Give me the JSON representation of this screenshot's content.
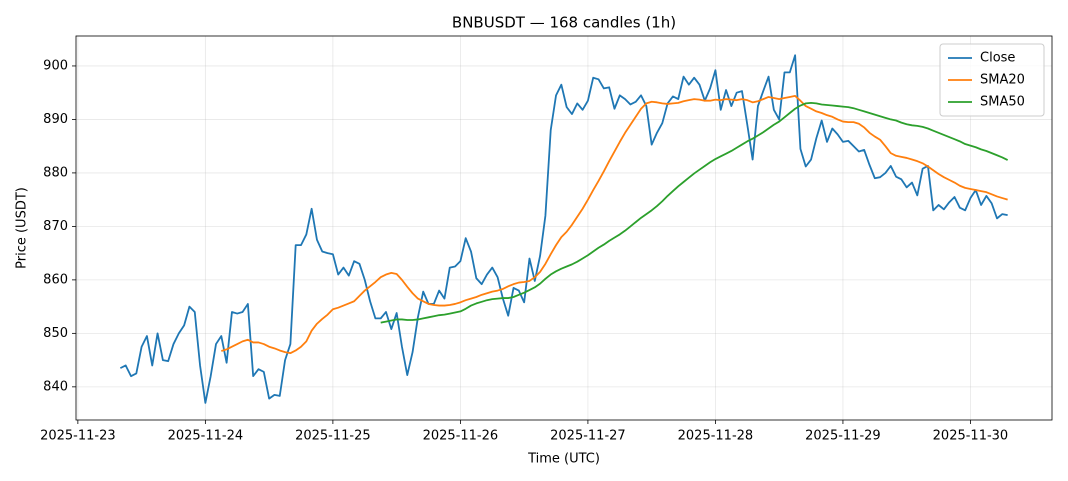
{
  "chart_data": {
    "type": "line",
    "title": "BNBUSDT — 168 candles (1h)",
    "x_label": "Time (UTC)",
    "y_label": "Price (USDT)",
    "x": [
      "2025-11-23 08:00",
      "2025-11-23 09:00",
      "2025-11-23 10:00",
      "2025-11-23 11:00",
      "2025-11-23 12:00",
      "2025-11-23 13:00",
      "2025-11-23 14:00",
      "2025-11-23 15:00",
      "2025-11-23 16:00",
      "2025-11-23 17:00",
      "2025-11-23 18:00",
      "2025-11-23 19:00",
      "2025-11-23 20:00",
      "2025-11-23 21:00",
      "2025-11-23 22:00",
      "2025-11-23 23:00",
      "2025-11-24 00:00",
      "2025-11-24 01:00",
      "2025-11-24 02:00",
      "2025-11-24 03:00",
      "2025-11-24 04:00",
      "2025-11-24 05:00",
      "2025-11-24 06:00",
      "2025-11-24 07:00",
      "2025-11-24 08:00",
      "2025-11-24 09:00",
      "2025-11-24 10:00",
      "2025-11-24 11:00",
      "2025-11-24 12:00",
      "2025-11-24 13:00",
      "2025-11-24 14:00",
      "2025-11-24 15:00",
      "2025-11-24 16:00",
      "2025-11-24 17:00",
      "2025-11-24 18:00",
      "2025-11-24 19:00",
      "2025-11-24 20:00",
      "2025-11-24 21:00",
      "2025-11-24 22:00",
      "2025-11-24 23:00",
      "2025-11-25 00:00",
      "2025-11-25 01:00",
      "2025-11-25 02:00",
      "2025-11-25 03:00",
      "2025-11-25 04:00",
      "2025-11-25 05:00",
      "2025-11-25 06:00",
      "2025-11-25 07:00",
      "2025-11-25 08:00",
      "2025-11-25 09:00",
      "2025-11-25 10:00",
      "2025-11-25 11:00",
      "2025-11-25 12:00",
      "2025-11-25 13:00",
      "2025-11-25 14:00",
      "2025-11-25 15:00",
      "2025-11-25 16:00",
      "2025-11-25 17:00",
      "2025-11-25 18:00",
      "2025-11-25 19:00",
      "2025-11-25 20:00",
      "2025-11-25 21:00",
      "2025-11-25 22:00",
      "2025-11-25 23:00",
      "2025-11-26 00:00",
      "2025-11-26 01:00",
      "2025-11-26 02:00",
      "2025-11-26 03:00",
      "2025-11-26 04:00",
      "2025-11-26 05:00",
      "2025-11-26 06:00",
      "2025-11-26 07:00",
      "2025-11-26 08:00",
      "2025-11-26 09:00",
      "2025-11-26 10:00",
      "2025-11-26 11:00",
      "2025-11-26 12:00",
      "2025-11-26 13:00",
      "2025-11-26 14:00",
      "2025-11-26 15:00",
      "2025-11-26 16:00",
      "2025-11-26 17:00",
      "2025-11-26 18:00",
      "2025-11-26 19:00",
      "2025-11-26 20:00",
      "2025-11-26 21:00",
      "2025-11-26 22:00",
      "2025-11-26 23:00",
      "2025-11-27 00:00",
      "2025-11-27 01:00",
      "2025-11-27 02:00",
      "2025-11-27 03:00",
      "2025-11-27 04:00",
      "2025-11-27 05:00",
      "2025-11-27 06:00",
      "2025-11-27 07:00",
      "2025-11-27 08:00",
      "2025-11-27 09:00",
      "2025-11-27 10:00",
      "2025-11-27 11:00",
      "2025-11-27 12:00",
      "2025-11-27 13:00",
      "2025-11-27 14:00",
      "2025-11-27 15:00",
      "2025-11-27 16:00",
      "2025-11-27 17:00",
      "2025-11-27 18:00",
      "2025-11-27 19:00",
      "2025-11-27 20:00",
      "2025-11-27 21:00",
      "2025-11-27 22:00",
      "2025-11-27 23:00",
      "2025-11-28 00:00",
      "2025-11-28 01:00",
      "2025-11-28 02:00",
      "2025-11-28 03:00",
      "2025-11-28 04:00",
      "2025-11-28 05:00",
      "2025-11-28 06:00",
      "2025-11-28 07:00",
      "2025-11-28 08:00",
      "2025-11-28 09:00",
      "2025-11-28 10:00",
      "2025-11-28 11:00",
      "2025-11-28 12:00",
      "2025-11-28 13:00",
      "2025-11-28 14:00",
      "2025-11-28 15:00",
      "2025-11-28 16:00",
      "2025-11-28 17:00",
      "2025-11-28 18:00",
      "2025-11-28 19:00",
      "2025-11-28 20:00",
      "2025-11-28 21:00",
      "2025-11-28 22:00",
      "2025-11-28 23:00",
      "2025-11-29 00:00",
      "2025-11-29 01:00",
      "2025-11-29 02:00",
      "2025-11-29 03:00",
      "2025-11-29 04:00",
      "2025-11-29 05:00",
      "2025-11-29 06:00",
      "2025-11-29 07:00",
      "2025-11-29 08:00",
      "2025-11-29 09:00",
      "2025-11-29 10:00",
      "2025-11-29 11:00",
      "2025-11-29 12:00",
      "2025-11-29 13:00",
      "2025-11-29 14:00",
      "2025-11-29 15:00",
      "2025-11-29 16:00",
      "2025-11-29 17:00",
      "2025-11-29 18:00",
      "2025-11-29 19:00",
      "2025-11-29 20:00",
      "2025-11-29 21:00",
      "2025-11-29 22:00",
      "2025-11-29 23:00",
      "2025-11-30 00:00",
      "2025-11-30 01:00",
      "2025-11-30 02:00",
      "2025-11-30 03:00",
      "2025-11-30 04:00",
      "2025-11-30 05:00",
      "2025-11-30 06:00",
      "2025-11-30 07:00"
    ],
    "series": [
      {
        "name": "Close",
        "color": "#1f77b4",
        "values": [
          843.5,
          844,
          842,
          842.5,
          847.5,
          849.5,
          844,
          850,
          845,
          844.8,
          848,
          850,
          851.5,
          855,
          854,
          844,
          837,
          842,
          848,
          849.5,
          844.5,
          854,
          853.7,
          854,
          855.5,
          842,
          843.3,
          842.8,
          837.8,
          838.5,
          838.3,
          845,
          848,
          866.5,
          866.5,
          868.5,
          873.3,
          867.5,
          865.3,
          865,
          864.8,
          861,
          862.3,
          860.8,
          863.5,
          863,
          860,
          856,
          852.8,
          852.8,
          854,
          850.8,
          853.8,
          847.5,
          842.2,
          846.5,
          853,
          857.8,
          855.5,
          855.5,
          858,
          856.5,
          862.3,
          862.5,
          863.5,
          867.8,
          865.3,
          860.3,
          859.2,
          861,
          862.3,
          860.5,
          856.5,
          853.3,
          858.5,
          858,
          855.8,
          864,
          859.8,
          864.5,
          872,
          888,
          894.5,
          896.5,
          892.3,
          891,
          893,
          891.8,
          893.5,
          897.8,
          897.5,
          895.8,
          896,
          892,
          894.5,
          893.8,
          892.8,
          893.3,
          894.5,
          892.5,
          885.3,
          887.5,
          889.3,
          893,
          894.3,
          893.8,
          898,
          896.5,
          897.8,
          896.5,
          893.5,
          895.8,
          899.2,
          891.8,
          895.5,
          892.5,
          895,
          895.3,
          889,
          882.5,
          892.5,
          895.3,
          898,
          891.8,
          890,
          898.8,
          898.8,
          902,
          884.5,
          881.2,
          882.5,
          886.5,
          889.8,
          885.8,
          888.3,
          887.2,
          885.8,
          886,
          885,
          884,
          884.3,
          881.5,
          879,
          879.2,
          880,
          881.3,
          879.3,
          878.8,
          877.3,
          878.2,
          875.8,
          880.8,
          881.3,
          873,
          874,
          873.2,
          874.5,
          875.5,
          873.5,
          873,
          875.3,
          876.8,
          874,
          875.7,
          874.3,
          871.5,
          872.3,
          872.1
        ]
      },
      {
        "name": "SMA20",
        "color": "#ff7f0e",
        "values": [
          null,
          null,
          null,
          null,
          null,
          null,
          null,
          null,
          null,
          null,
          null,
          null,
          null,
          null,
          null,
          null,
          null,
          null,
          null,
          846.7,
          847,
          847.5,
          848,
          848.5,
          848.8,
          848.3,
          848.3,
          848,
          847.5,
          847.2,
          846.8,
          846.5,
          846.3,
          846.8,
          847.5,
          848.5,
          850.5,
          851.8,
          852.7,
          853.5,
          854.5,
          854.8,
          855.2,
          855.6,
          856,
          857,
          858,
          858.8,
          859.6,
          860.5,
          861,
          861.3,
          861.1,
          860,
          858.7,
          857.5,
          856.5,
          856,
          855.5,
          855.3,
          855.2,
          855.2,
          855.3,
          855.5,
          855.8,
          856.2,
          856.5,
          856.8,
          857.2,
          857.5,
          857.8,
          858,
          858.3,
          858.8,
          859.2,
          859.5,
          859.6,
          859.8,
          860.5,
          861.5,
          863,
          864.8,
          866.5,
          868,
          869,
          870.3,
          871.8,
          873.3,
          875,
          876.8,
          878.5,
          880.3,
          882.2,
          884,
          885.8,
          887.5,
          889,
          890.5,
          892,
          893,
          893.3,
          893.2,
          893,
          892.9,
          893,
          893.1,
          893.4,
          893.6,
          893.8,
          893.7,
          893.5,
          893.5,
          893.7,
          893.6,
          893.8,
          893.7,
          893.6,
          893.8,
          893.6,
          893.2,
          893.4,
          893.8,
          894.2,
          894,
          893.8,
          894,
          894.2,
          894.4,
          893.5,
          892.5,
          892,
          891.5,
          891.2,
          890.8,
          890.5,
          890,
          889.6,
          889.5,
          889.5,
          889.2,
          888.5,
          887.5,
          886.8,
          886.2,
          885,
          883.7,
          883.2,
          883,
          882.8,
          882.5,
          882.2,
          881.8,
          881.2,
          880.5,
          879.8,
          879.2,
          878.7,
          878.2,
          877.6,
          877.2,
          877,
          876.8,
          876.6,
          876.4,
          876,
          875.6,
          875.3,
          875
        ]
      },
      {
        "name": "SMA50",
        "color": "#2ca02c",
        "values": [
          null,
          null,
          null,
          null,
          null,
          null,
          null,
          null,
          null,
          null,
          null,
          null,
          null,
          null,
          null,
          null,
          null,
          null,
          null,
          null,
          null,
          null,
          null,
          null,
          null,
          null,
          null,
          null,
          null,
          null,
          null,
          null,
          null,
          null,
          null,
          null,
          null,
          null,
          null,
          null,
          null,
          null,
          null,
          null,
          null,
          null,
          null,
          null,
          null,
          852,
          852.2,
          852.4,
          852.6,
          852.6,
          852.5,
          852.5,
          852.6,
          852.8,
          853,
          853.2,
          853.4,
          853.5,
          853.7,
          853.9,
          854.1,
          854.6,
          855.2,
          855.6,
          855.9,
          856.2,
          856.4,
          856.5,
          856.6,
          856.6,
          856.8,
          857.2,
          857.6,
          858.1,
          858.6,
          859.3,
          860.2,
          861,
          861.6,
          862.1,
          862.5,
          862.9,
          863.4,
          864,
          864.6,
          865.3,
          866,
          866.6,
          867.3,
          867.9,
          868.5,
          869.2,
          870,
          870.8,
          871.6,
          872.3,
          873,
          873.8,
          874.7,
          875.7,
          876.6,
          877.5,
          878.3,
          879.1,
          879.9,
          880.6,
          881.3,
          882,
          882.6,
          883.1,
          883.6,
          884.1,
          884.7,
          885.3,
          885.9,
          886.4,
          887,
          887.6,
          888.3,
          889,
          889.6,
          890.4,
          891.2,
          892,
          892.6,
          893,
          893.1,
          893,
          892.8,
          892.7,
          892.6,
          892.5,
          892.4,
          892.3,
          892.1,
          891.8,
          891.5,
          891.2,
          890.9,
          890.6,
          890.3,
          890,
          889.8,
          889.4,
          889.1,
          888.9,
          888.8,
          888.6,
          888.3,
          887.9,
          887.5,
          887.1,
          886.7,
          886.3,
          885.9,
          885.4,
          885.1,
          884.8,
          884.4,
          884.1,
          883.7,
          883.3,
          882.9,
          882.4
        ]
      }
    ],
    "xlim": [
      "2025-11-22 23:39",
      "2025-11-30 15:21"
    ],
    "xticks": [
      "2025-11-23",
      "2025-11-24",
      "2025-11-25",
      "2025-11-26",
      "2025-11-27",
      "2025-11-28",
      "2025-11-29",
      "2025-11-30"
    ],
    "ylim": [
      833.8,
      905.6
    ],
    "yticks": [
      840,
      850,
      860,
      870,
      880,
      890,
      900
    ],
    "grid": true,
    "legend": "upper right"
  }
}
